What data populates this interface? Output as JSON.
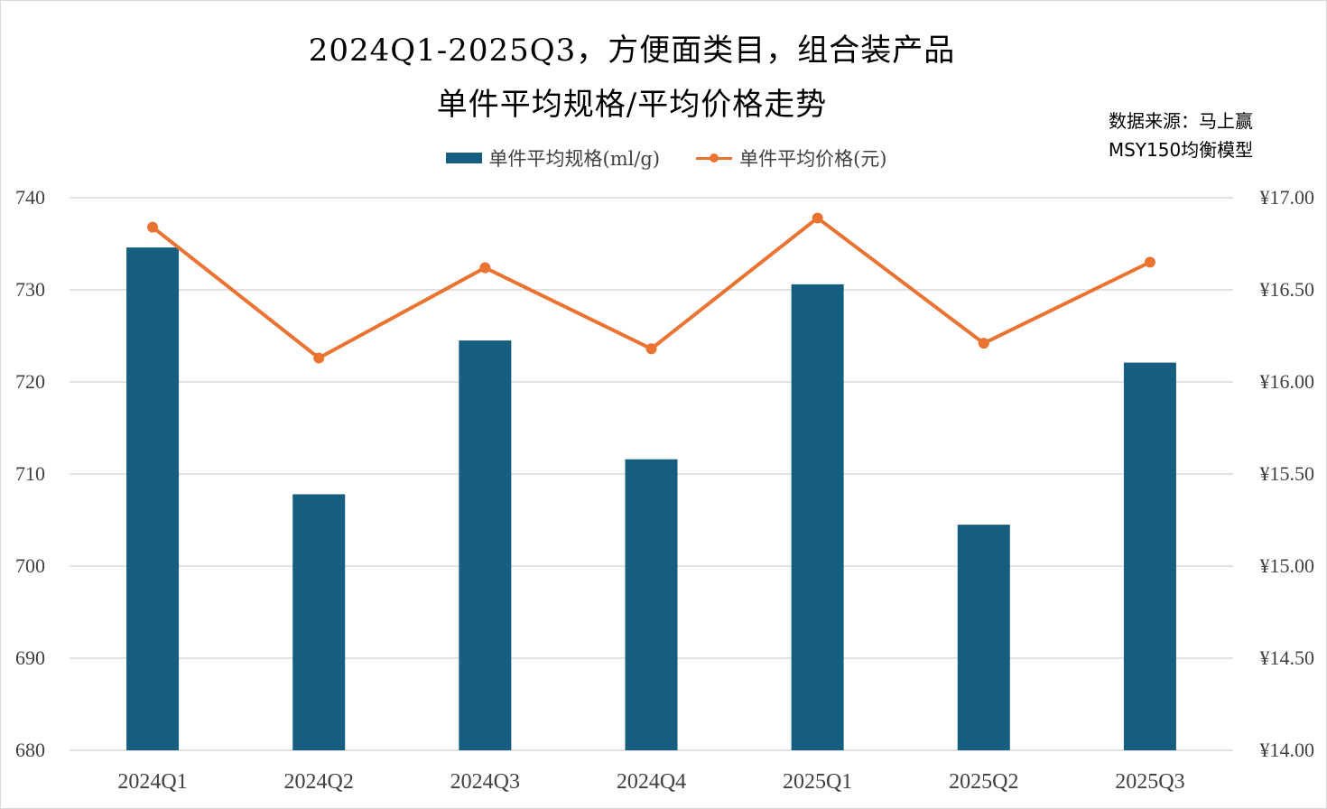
{
  "title_line1": "2024Q1-2025Q3，方便面类目，组合装产品",
  "title_line2": "单件平均规格/平均价格走势",
  "source_line1": "数据来源：马上赢",
  "source_line2": "MSY150均衡模型",
  "colors": {
    "bar": "#165e80",
    "line": "#ea7332",
    "grid": "#d9d9d9"
  },
  "chart_data": {
    "type": "bar",
    "categories": [
      "2024Q1",
      "2024Q2",
      "2024Q3",
      "2024Q4",
      "2025Q1",
      "2025Q2",
      "2025Q3"
    ],
    "series": [
      {
        "name": "单件平均规格(ml/g)",
        "type": "bar",
        "axis": "left",
        "values": [
          734.6,
          707.8,
          724.5,
          711.6,
          730.6,
          704.5,
          722.1
        ]
      },
      {
        "name": "单件平均价格(元)",
        "type": "line",
        "axis": "right",
        "values": [
          16.84,
          16.13,
          16.62,
          16.18,
          16.89,
          16.21,
          16.65
        ]
      }
    ],
    "y_left": {
      "min": 680,
      "max": 740,
      "step": 10,
      "tick_labels": [
        "680",
        "690",
        "700",
        "710",
        "720",
        "730",
        "740"
      ]
    },
    "y_right": {
      "min": 14,
      "max": 17,
      "step": 0.5,
      "tick_labels": [
        "¥14.00",
        "¥14.50",
        "¥15.00",
        "¥15.50",
        "¥16.00",
        "¥16.50",
        "¥17.00"
      ]
    },
    "grid": true,
    "legend_position": "top"
  }
}
